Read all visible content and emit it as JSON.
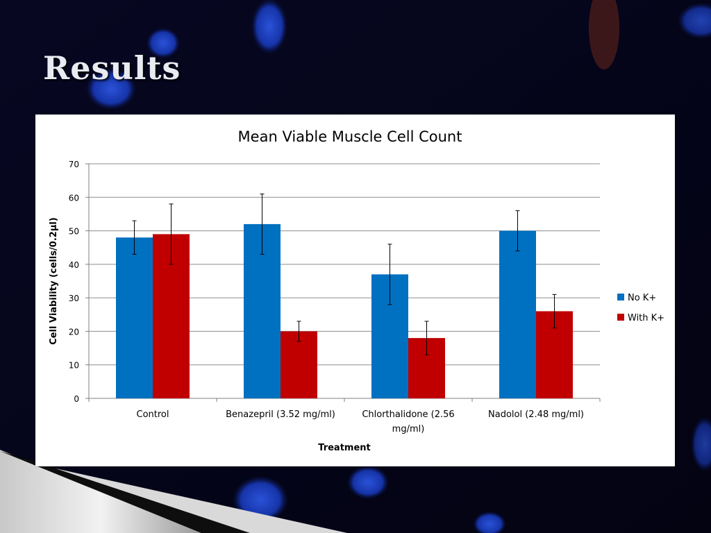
{
  "slide": {
    "title": "Results"
  },
  "colors": {
    "no_k": "#0070c0",
    "with_k": "#c00000",
    "grid": "#8c8c8c",
    "panel": "#ffffff"
  },
  "chart_data": {
    "type": "bar",
    "title": "Mean Viable Muscle Cell Count",
    "xlabel": "Treatment",
    "ylabel": "Cell Viability (cells/0.2µl)",
    "ylim": [
      0,
      70
    ],
    "yticks": [
      0,
      10,
      20,
      30,
      40,
      50,
      60,
      70
    ],
    "categories": [
      [
        "Control"
      ],
      [
        "Benazepril (3.52 mg/ml)"
      ],
      [
        "Chlorthalidone (2.56",
        "mg/ml)"
      ],
      [
        "Nadolol (2.48 mg/ml)"
      ]
    ],
    "series": [
      {
        "name": "No K+",
        "color": "#0070c0",
        "values": [
          48,
          52,
          37,
          50
        ],
        "error_low": [
          43,
          43,
          28,
          44
        ],
        "error_high": [
          53,
          61,
          46,
          56
        ]
      },
      {
        "name": "With K+",
        "color": "#c00000",
        "values": [
          49,
          20,
          18,
          26
        ],
        "error_low": [
          40,
          17,
          13,
          21
        ],
        "error_high": [
          58,
          23,
          23,
          31
        ]
      }
    ],
    "grid": true,
    "legend": "right"
  }
}
